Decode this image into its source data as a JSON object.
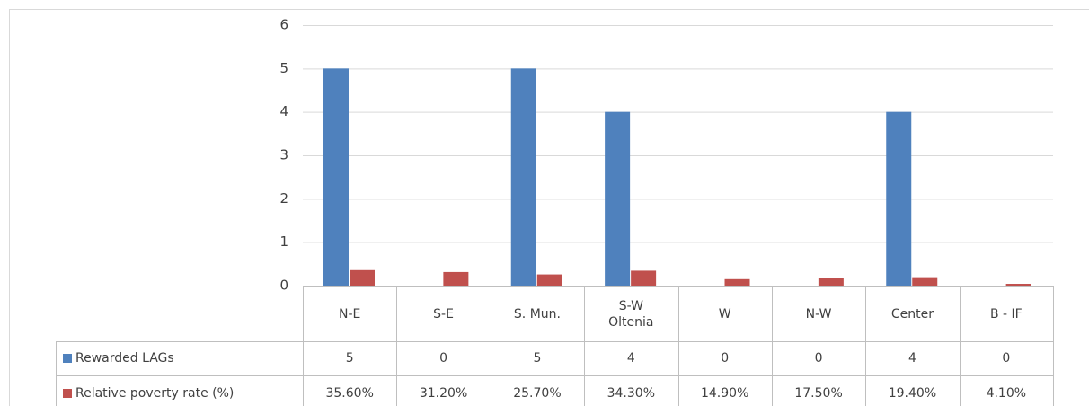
{
  "chart_data": {
    "type": "bar",
    "categories": [
      "N-E",
      "S-E",
      "S. Mun.",
      "S-W\nOltenia",
      "W",
      "N-W",
      "Center",
      "B - IF"
    ],
    "series": [
      {
        "name": "Rewarded LAGs",
        "color": "#4f81bd",
        "values": [
          5,
          0,
          5,
          4,
          0,
          0,
          4,
          0
        ]
      },
      {
        "name": "Relative poverty rate (%)",
        "color": "#c0504d",
        "values": [
          0.356,
          0.312,
          0.257,
          0.343,
          0.149,
          0.175,
          0.194,
          0.041
        ],
        "value_labels": [
          "35.60%",
          "31.20%",
          "25.70%",
          "34.30%",
          "14.90%",
          "17.50%",
          "19.40%",
          "4.10%"
        ]
      }
    ],
    "ylim": [
      0,
      6
    ],
    "yticks": [
      0,
      1,
      2,
      3,
      4,
      5,
      6
    ],
    "grid": true,
    "data_table": true
  }
}
